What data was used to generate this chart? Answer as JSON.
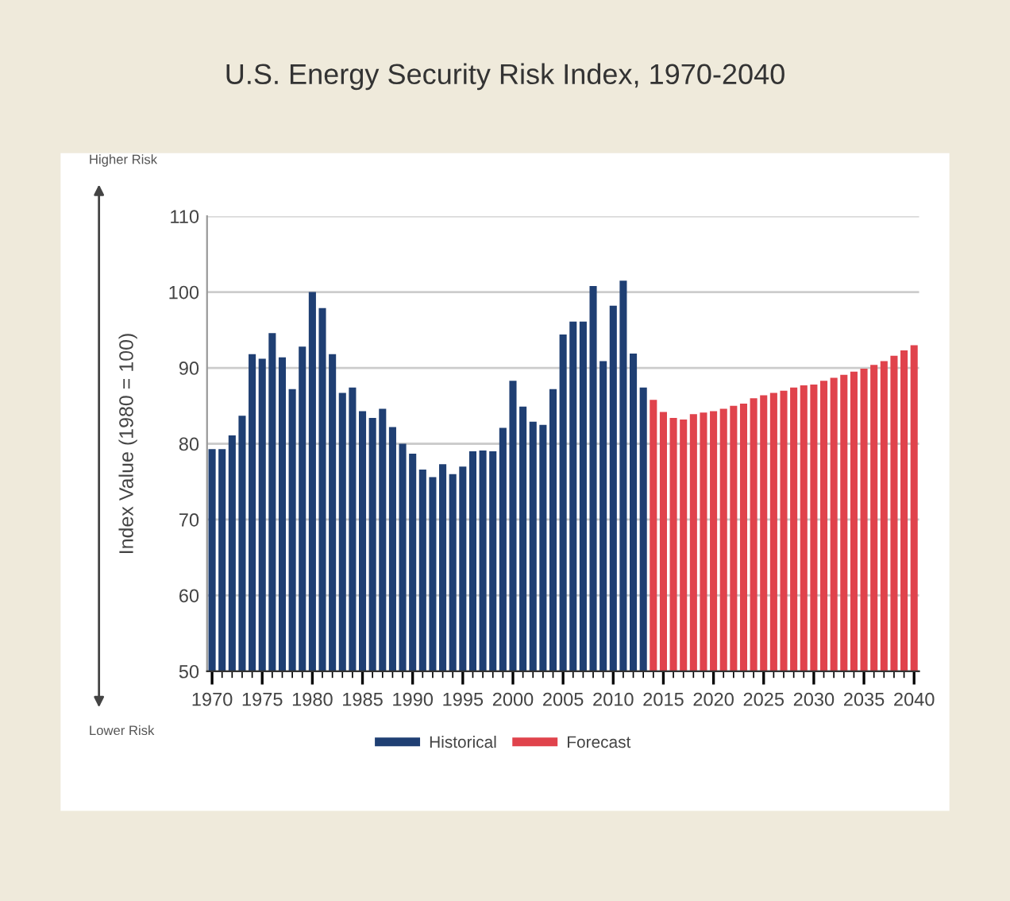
{
  "chart_data": {
    "type": "bar",
    "title": "U.S. Energy Security Risk Index, 1970-2040",
    "ylabel": "Index Value (1980 = 100)",
    "annotations": [
      "Higher Risk",
      "Lower Risk"
    ],
    "series": [
      {
        "name": "Historical",
        "color": "#1f3f73",
        "x": [
          1970,
          1971,
          1972,
          1973,
          1974,
          1975,
          1976,
          1977,
          1978,
          1979,
          1980,
          1981,
          1982,
          1983,
          1984,
          1985,
          1986,
          1987,
          1988,
          1989,
          1990,
          1991,
          1992,
          1993,
          1994,
          1995,
          1996,
          1997,
          1998,
          1999,
          2000,
          2001,
          2002,
          2003,
          2004,
          2005,
          2006,
          2007,
          2008,
          2009,
          2010,
          2011,
          2012,
          2013
        ],
        "values": [
          79.3,
          79.3,
          81.1,
          83.7,
          91.8,
          91.2,
          94.6,
          91.4,
          87.2,
          92.8,
          100,
          97.9,
          91.8,
          86.7,
          87.4,
          84.3,
          83.4,
          84.6,
          82.2,
          80.0,
          78.7,
          76.6,
          75.6,
          77.3,
          76.0,
          77.0,
          79.0,
          79.1,
          79.0,
          82.1,
          88.3,
          84.9,
          82.9,
          82.5,
          87.2,
          94.4,
          96.1,
          96.1,
          100.8,
          90.9,
          98.2,
          101.5,
          91.9,
          87.4
        ]
      },
      {
        "name": "Forecast",
        "color": "#e0434c",
        "x": [
          2014,
          2015,
          2016,
          2017,
          2018,
          2019,
          2020,
          2021,
          2022,
          2023,
          2024,
          2025,
          2026,
          2027,
          2028,
          2029,
          2030,
          2031,
          2032,
          2033,
          2034,
          2035,
          2036,
          2037,
          2038,
          2039,
          2040
        ],
        "values": [
          85.8,
          84.2,
          83.4,
          83.2,
          83.9,
          84.1,
          84.3,
          84.6,
          85.0,
          85.3,
          86.0,
          86.4,
          86.7,
          87.0,
          87.4,
          87.7,
          87.8,
          88.3,
          88.7,
          89.1,
          89.5,
          89.9,
          90.4,
          90.9,
          91.6,
          92.3,
          93.0
        ]
      }
    ],
    "xlim": [
      1969.5,
      2040.5
    ],
    "xticks": [
      1970,
      1975,
      1980,
      1985,
      1990,
      1995,
      2000,
      2005,
      2010,
      2015,
      2020,
      2025,
      2030,
      2035,
      2040
    ],
    "ylim": [
      50,
      110
    ],
    "yticks": [
      50,
      60,
      70,
      80,
      90,
      100,
      110
    ],
    "grid": "y",
    "legend": "bottom"
  }
}
